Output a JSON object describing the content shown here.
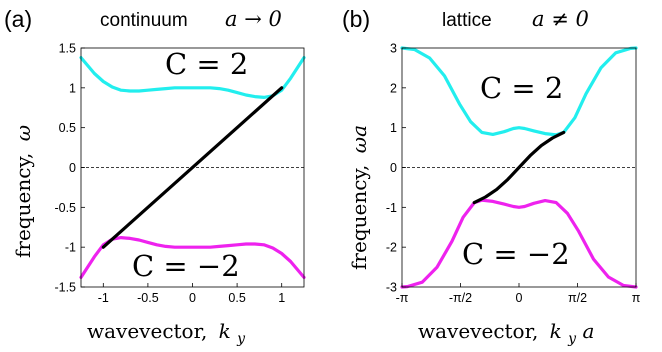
{
  "chart_data": [
    {
      "type": "line",
      "panel_label": "(a)",
      "title": "continuum",
      "title_math": "a → 0",
      "xlabel": "wavevector,",
      "xlabel_math": "k",
      "xlabel_sub": "y",
      "ylabel": "frequency,",
      "ylabel_math": "ω",
      "xlim": [
        -1.25,
        1.25
      ],
      "ylim": [
        -1.5,
        1.5
      ],
      "xticks": [
        -1,
        -0.5,
        0,
        0.5,
        1
      ],
      "xticklabels": [
        "-1",
        "-0.5",
        "0",
        "0.5",
        "1"
      ],
      "yticks": [
        -1.5,
        -1,
        -0.5,
        0,
        0.5,
        1,
        1.5
      ],
      "yticklabels": [
        "-1.5",
        "-1",
        "-0.5",
        "0",
        "0.5",
        "1",
        "1.5"
      ],
      "zero_line": "dashed",
      "annotations": [
        {
          "text": "C = 2",
          "x": 0,
          "y": 1.25
        },
        {
          "text": "C = −2",
          "x": 0,
          "y": -1.22
        }
      ],
      "series": [
        {
          "color": "#22eeee",
          "x": [
            -1.25,
            -1.1,
            -1.0,
            -0.9,
            -0.8,
            -0.7,
            -0.6,
            -0.5,
            -0.4,
            -0.3,
            -0.2,
            -0.1,
            0.0,
            0.1,
            0.2,
            0.3,
            0.4,
            0.5,
            0.6,
            0.7,
            0.8,
            0.9,
            1.0,
            1.1,
            1.25
          ],
          "y": [
            1.38,
            1.18,
            1.08,
            1.01,
            0.97,
            0.96,
            0.96,
            0.97,
            0.98,
            0.99,
            1.0,
            1.0,
            1.0,
            1.0,
            1.0,
            0.99,
            0.97,
            0.94,
            0.91,
            0.89,
            0.88,
            0.9,
            0.97,
            1.12,
            1.38
          ]
        },
        {
          "color": "#ee22ee",
          "x": [
            -1.25,
            -1.1,
            -1.0,
            -0.9,
            -0.8,
            -0.7,
            -0.6,
            -0.5,
            -0.4,
            -0.3,
            -0.2,
            -0.1,
            0.0,
            0.1,
            0.2,
            0.3,
            0.4,
            0.5,
            0.6,
            0.7,
            0.8,
            0.9,
            1.0,
            1.1,
            1.25
          ],
          "y": [
            -1.38,
            -1.12,
            -0.97,
            -0.9,
            -0.88,
            -0.89,
            -0.91,
            -0.94,
            -0.97,
            -0.99,
            -1.0,
            -1.0,
            -1.0,
            -1.0,
            -1.0,
            -0.99,
            -0.98,
            -0.97,
            -0.96,
            -0.96,
            -0.97,
            -1.01,
            -1.08,
            -1.18,
            -1.38
          ]
        },
        {
          "color": "#000000",
          "x": [
            -1.0,
            1.0
          ],
          "y": [
            -1.0,
            1.0
          ]
        }
      ]
    },
    {
      "type": "line",
      "panel_label": "(b)",
      "title": "lattice",
      "title_math": "a ≠ 0",
      "xlabel": "wavevector,",
      "xlabel_math": "k",
      "xlabel_sub": "y",
      "xlabel_tail": "a",
      "ylabel": "frequency,",
      "ylabel_math": "ωa",
      "xlim": [
        -3.1416,
        3.1416
      ],
      "ylim": [
        -3,
        3
      ],
      "xticks": [
        -3.1416,
        -1.5708,
        0,
        1.5708,
        3.1416
      ],
      "xticklabels": [
        "-π",
        "-π/2",
        "0",
        "π/2",
        "π"
      ],
      "yticks": [
        -3,
        -2,
        -1,
        0,
        1,
        2,
        3
      ],
      "yticklabels": [
        "-3",
        "-2",
        "-1",
        "0",
        "1",
        "2",
        "3"
      ],
      "zero_line": "dashed",
      "annotations": [
        {
          "text": "C = 2",
          "x": 0.1,
          "y": 2.0
        },
        {
          "text": "C = −2",
          "x": 0.1,
          "y": -2.1
        }
      ],
      "series": [
        {
          "color": "#22eeee",
          "x": [
            -3.1416,
            -2.8,
            -2.4,
            -2.0,
            -1.6,
            -1.3,
            -1.0,
            -0.7,
            -0.4,
            -0.15,
            0.0,
            0.15,
            0.4,
            0.7,
            1.0,
            1.2,
            1.5,
            1.8,
            2.2,
            2.6,
            3.0,
            3.1416
          ],
          "y": [
            3.0,
            2.96,
            2.75,
            2.3,
            1.6,
            1.15,
            0.88,
            0.83,
            0.9,
            0.98,
            1.0,
            0.98,
            0.92,
            0.85,
            0.82,
            0.88,
            1.25,
            1.85,
            2.5,
            2.88,
            2.99,
            3.0
          ]
        },
        {
          "color": "#ee22ee",
          "x": [
            -3.1416,
            -3.0,
            -2.6,
            -2.2,
            -1.8,
            -1.5,
            -1.2,
            -1.0,
            -0.7,
            -0.4,
            -0.15,
            0.0,
            0.15,
            0.4,
            0.7,
            1.0,
            1.3,
            1.6,
            2.0,
            2.4,
            2.8,
            3.1416
          ],
          "y": [
            -3.0,
            -2.99,
            -2.88,
            -2.5,
            -1.85,
            -1.25,
            -0.88,
            -0.82,
            -0.85,
            -0.92,
            -0.98,
            -1.0,
            -0.98,
            -0.9,
            -0.83,
            -0.88,
            -1.15,
            -1.6,
            -2.3,
            -2.75,
            -2.96,
            -3.0
          ]
        },
        {
          "color": "#000000",
          "x": [
            -1.2,
            -0.9,
            -0.6,
            -0.3,
            0.0,
            0.3,
            0.6,
            0.9,
            1.2
          ],
          "y": [
            -0.88,
            -0.74,
            -0.55,
            -0.3,
            0.0,
            0.3,
            0.55,
            0.74,
            0.88
          ]
        }
      ]
    }
  ]
}
